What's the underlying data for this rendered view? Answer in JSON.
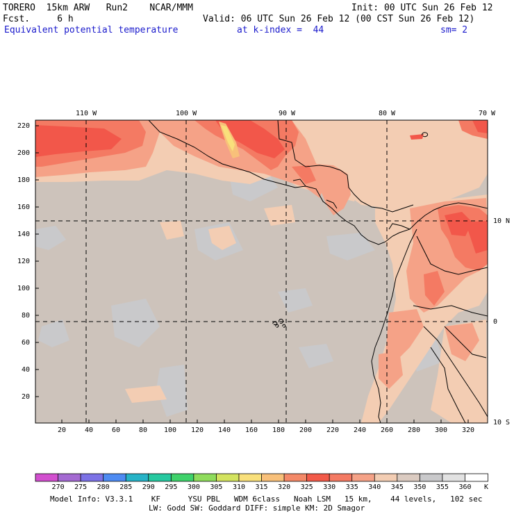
{
  "header": {
    "model": "TORERO  15km ARW   Run2    NCAR/MMM",
    "init": "Init: 00 UTC Sun 26 Feb 12",
    "fcst": "Fcst.     6 h",
    "valid": "Valid: 06 UTC Sun 26 Feb 12 (00 CST Sun 26 Feb 12)",
    "field": "Equivalent potential temperature",
    "level": "at k-index =  44",
    "smooth": "sm= 2"
  },
  "map": {
    "lon_labels": [
      "110 W",
      "100 W",
      "90 W",
      "80 W",
      "70 W"
    ],
    "lat_labels": [
      "10 N",
      "0",
      "10 S"
    ],
    "x_ticks": [
      "20",
      "40",
      "60",
      "80",
      "100",
      "120",
      "140",
      "160",
      "180",
      "200",
      "220",
      "240",
      "260",
      "280",
      "300",
      "320"
    ],
    "y_ticks": [
      "220",
      "200",
      "180",
      "160",
      "140",
      "120",
      "100",
      "80",
      "60",
      "40",
      "20"
    ],
    "background_color": "#cdc3bb",
    "colors": {
      "c335": "#f5a287",
      "c330": "#f47a63",
      "c325": "#f2574a",
      "c340": "#f3cdb3",
      "c345": "#dbcbc1",
      "c350": "#c9c9cb",
      "c320": "#f8c07a",
      "c315": "#f9e07b"
    }
  },
  "colorbar": {
    "levels": [
      "270",
      "275",
      "280",
      "285",
      "290",
      "295",
      "300",
      "305",
      "310",
      "315",
      "320",
      "325",
      "330",
      "335",
      "340",
      "345",
      "350",
      "355",
      "360"
    ],
    "unit": "K",
    "colors": [
      "#d24fcf",
      "#a46ad2",
      "#7c72e6",
      "#4e8bf2",
      "#27b3c7",
      "#27c9a0",
      "#3fd26b",
      "#8fdc5c",
      "#d3e35f",
      "#f9e07b",
      "#f8c07a",
      "#f48968",
      "#f25a49",
      "#f47a63",
      "#f5a287",
      "#f3cdb3",
      "#dbcbc1",
      "#c9c9cb",
      "#e2e2e2",
      "#ffffff"
    ]
  },
  "footer": {
    "line1": "Model Info: V3.3.1    KF      YSU PBL   WDM 6class   Noah LSM   15 km,    44 levels,   102 sec",
    "line2": "LW: Godd SW: Goddard DIFF: simple KM: 2D Smagor"
  }
}
